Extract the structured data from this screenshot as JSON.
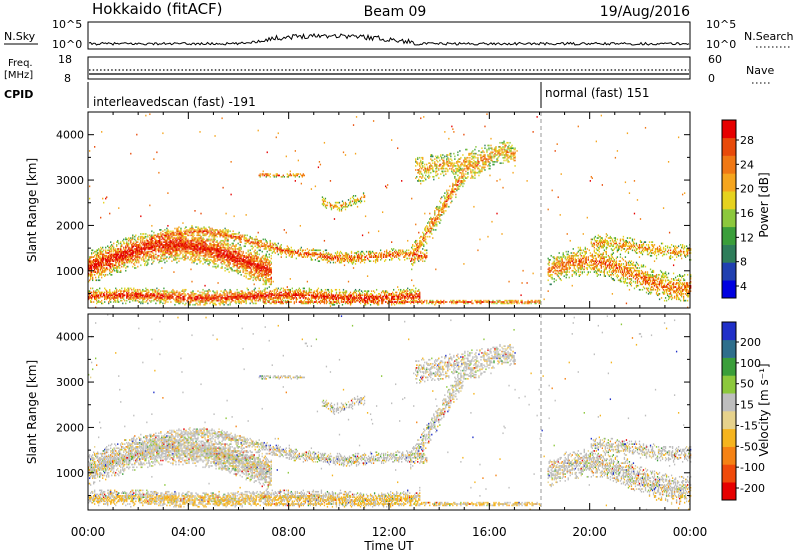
{
  "header": {
    "station": "Hokkaido (fitACF)",
    "beam": "Beam 09",
    "date": "19/Aug/2016"
  },
  "top_panel": {
    "nsky_label": "N.Sky",
    "nsky_ticks": [
      "10^5",
      "10^0"
    ],
    "nsearch_label": "N.Search",
    "nsearch_ticks": [
      "10^5",
      "10^0"
    ],
    "freq_label_1": "Freq.",
    "freq_label_2": "[MHz]",
    "freq_ticks": [
      "18",
      "8"
    ],
    "nave_label": "Nave",
    "nave_ticks": [
      "60",
      "0"
    ],
    "cpid_label": "CPID",
    "cpid_segments": [
      {
        "text": "interleavedscan (fast) -191"
      },
      {
        "text": "normal (fast) 151"
      }
    ]
  },
  "chart_data": [
    {
      "type": "heatmap",
      "title": "",
      "xlabel": "Time UT",
      "ylabel": "Slant Range [km]",
      "x_tick_labels": [
        "00:00",
        "04:00",
        "08:00",
        "12:00",
        "16:00",
        "20:00",
        "00:00"
      ],
      "xlim_hours": [
        0,
        24
      ],
      "y_ticks": [
        1000,
        2000,
        3000,
        4000
      ],
      "ylim": [
        180,
        4500
      ],
      "colorbar": {
        "label": "Power [dB]",
        "ticks": [
          "28",
          "24",
          "20",
          "16",
          "12",
          "8",
          "4"
        ],
        "range": [
          0,
          32
        ],
        "colors": [
          "#0000e0",
          "#2040b0",
          "#2e7d5a",
          "#3a9e3a",
          "#8cc83c",
          "#e6d21e",
          "#f5a51e",
          "#f07814",
          "#e84a0a",
          "#e60000"
        ]
      }
    },
    {
      "type": "heatmap",
      "title": "",
      "xlabel": "Time UT",
      "ylabel": "Slant Range [km]",
      "x_tick_labels": [
        "00:00",
        "04:00",
        "08:00",
        "12:00",
        "16:00",
        "20:00",
        "00:00"
      ],
      "xlim_hours": [
        0,
        24
      ],
      "y_ticks": [
        1000,
        2000,
        3000,
        4000
      ],
      "ylim": [
        180,
        4500
      ],
      "colorbar": {
        "label": "Velocity [m s⁻¹]",
        "ticks": [
          "200",
          "100",
          "50",
          "15",
          "-15",
          "-50",
          "-100",
          "-200"
        ],
        "range": [
          -250,
          250
        ],
        "colors": [
          "#e60000",
          "#f04a0a",
          "#f58214",
          "#f5b41e",
          "#e6d28c",
          "#bebebe",
          "#8cc83c",
          "#3a9e3a",
          "#2e6e8c",
          "#2030c8"
        ]
      }
    }
  ],
  "time_axis_label": "Time UT"
}
